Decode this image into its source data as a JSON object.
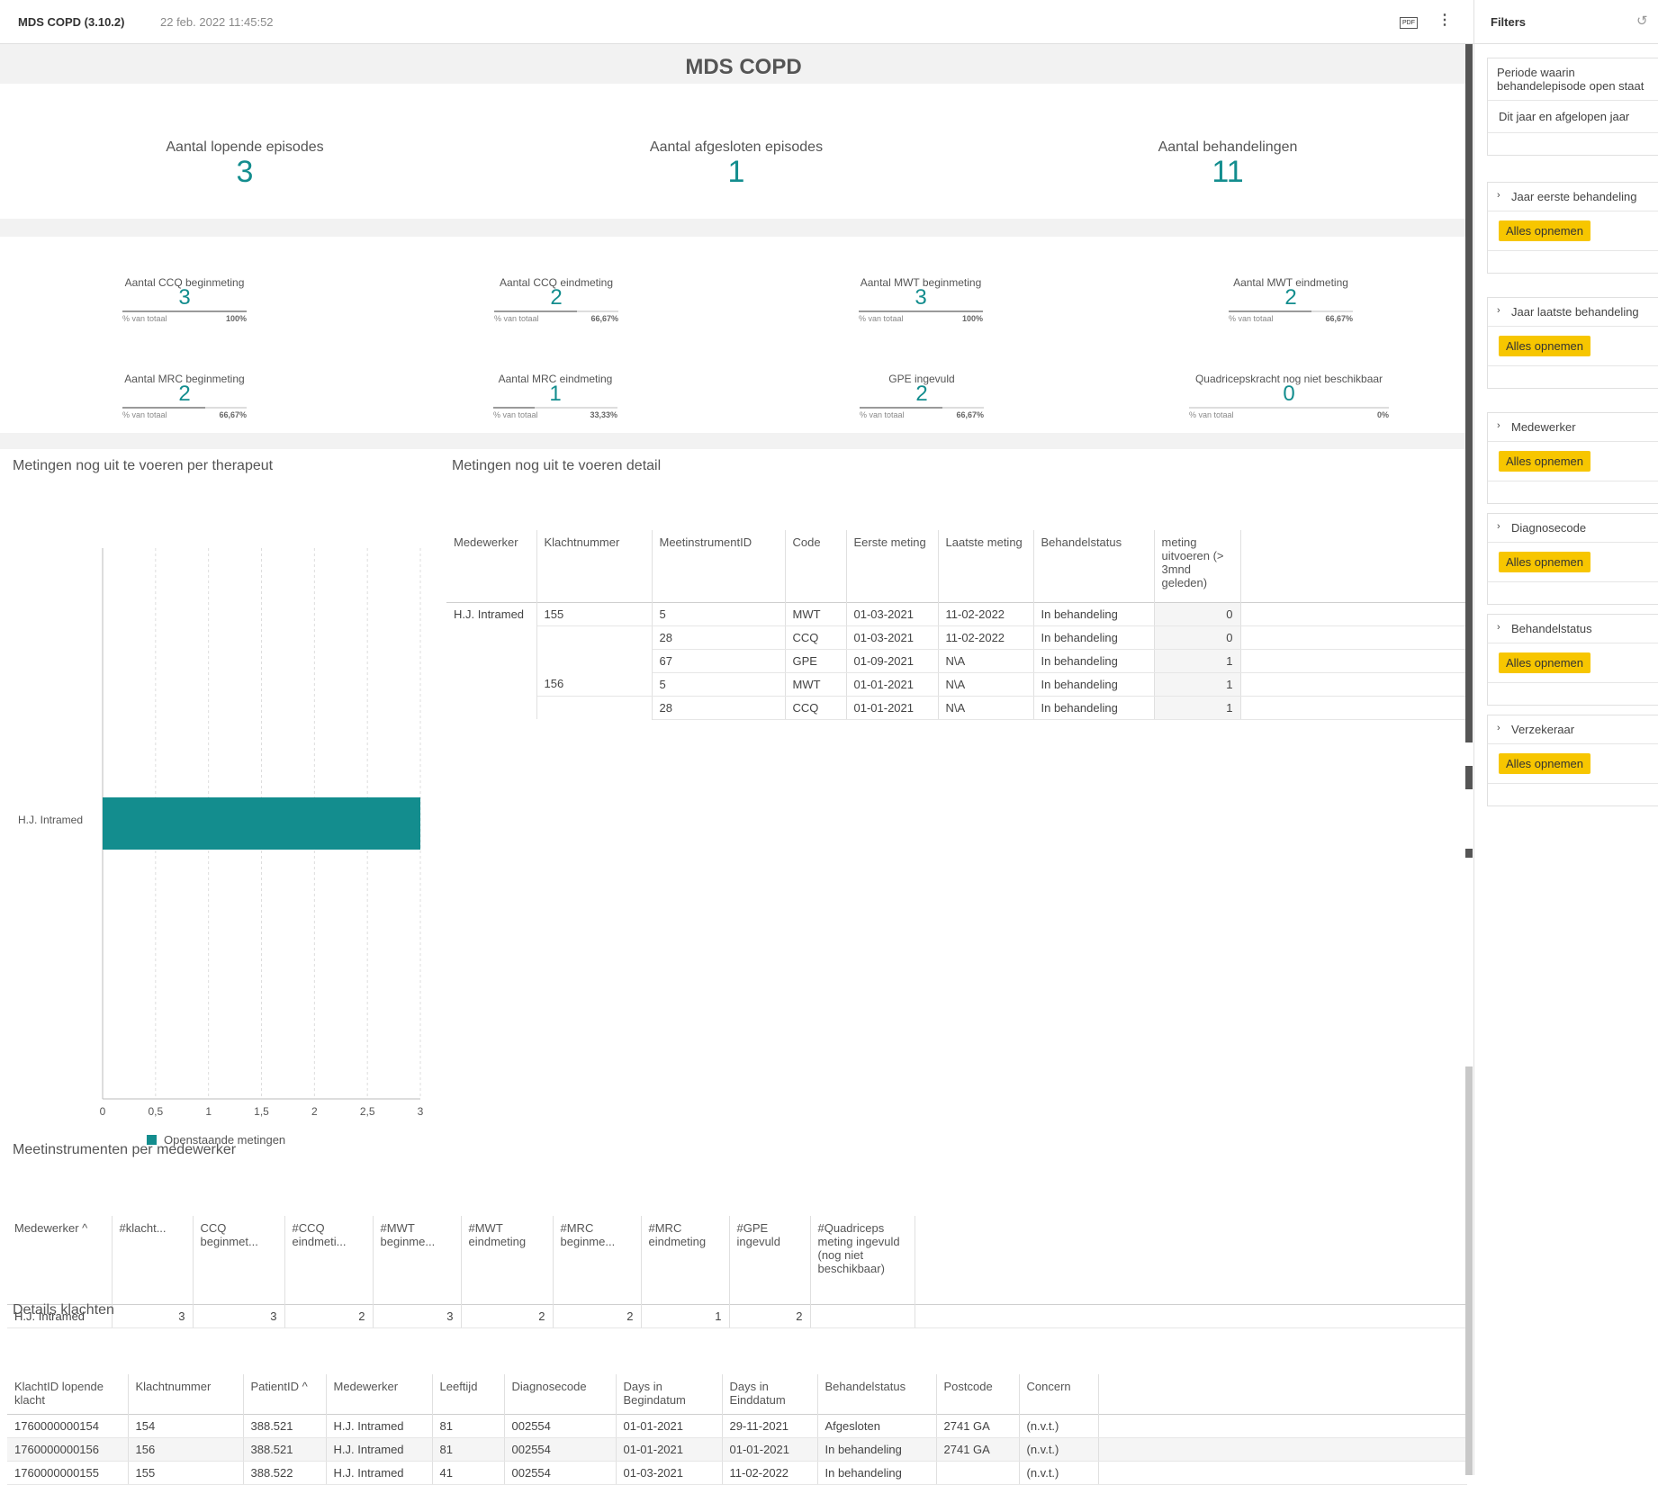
{
  "header": {
    "title": "MDS COPD (3.10.2)",
    "date": "22 feb. 2022 11:45:52",
    "pdf_label": "PDF",
    "more_glyph": "⋮"
  },
  "dashboard": {
    "title": "MDS COPD"
  },
  "kpis": [
    {
      "label": "Aantal lopende episodes",
      "value": "3"
    },
    {
      "label": "Aantal afgesloten episodes",
      "value": "1"
    },
    {
      "label": "Aantal behandelingen",
      "value": "11"
    }
  ],
  "small_kpis": [
    {
      "label": "Aantal CCQ beginmeting",
      "value": "3",
      "pct_label": "% van totaal",
      "pct": "100%",
      "fraction": 1.0
    },
    {
      "label": "Aantal CCQ eindmeting",
      "value": "2",
      "pct_label": "% van totaal",
      "pct": "66,67%",
      "fraction": 0.6667
    },
    {
      "label": "Aantal MWT beginmeting",
      "value": "3",
      "pct_label": "% van totaal",
      "pct": "100%",
      "fraction": 1.0
    },
    {
      "label": "Aantal MWT eindmeting",
      "value": "2",
      "pct_label": "% van totaal",
      "pct": "66,67%",
      "fraction": 0.6667
    },
    {
      "label": "Aantal MRC beginmeting",
      "value": "2",
      "pct_label": "% van totaal",
      "pct": "66,67%",
      "fraction": 0.6667
    },
    {
      "label": "Aantal MRC eindmeting",
      "value": "1",
      "pct_label": "% van totaal",
      "pct": "33,33%",
      "fraction": 0.3333
    },
    {
      "label": "GPE ingevuld",
      "value": "2",
      "pct_label": "% van totaal",
      "pct": "66,67%",
      "fraction": 0.6667
    },
    {
      "label": "Quadricepskracht nog niet beschikbaar",
      "value": "0",
      "pct_label": "% van totaal",
      "pct": "0%",
      "fraction": 0
    }
  ],
  "chart_section": {
    "title": "Metingen nog uit te voeren per therapeut"
  },
  "chart_data": {
    "type": "bar",
    "orientation": "horizontal",
    "categories": [
      "H.J. Intramed"
    ],
    "series": [
      {
        "name": "Openstaande metingen",
        "values": [
          3
        ],
        "color": "#138d8e"
      }
    ],
    "xlim": [
      0,
      3
    ],
    "x_ticks": [
      "0",
      "0,5",
      "1",
      "1,5",
      "2",
      "2,5",
      "3"
    ],
    "grid": true,
    "legend": "bottom"
  },
  "detail_section": {
    "title": "Metingen nog uit te voeren detail",
    "columns": [
      "Medewerker",
      "Klachtnummer",
      "MeetinstrumentID",
      "Code",
      "Eerste meting",
      "Laatste meting",
      "Behandelstatus",
      "meting uitvoeren (> 3mnd geleden)"
    ],
    "rows": [
      [
        "H.J. Intramed",
        "155",
        "5",
        "MWT",
        "01-03-2021",
        "11-02-2022",
        "In behandeling",
        "0"
      ],
      [
        "",
        "",
        "28",
        "CCQ",
        "01-03-2021",
        "11-02-2022",
        "In behandeling",
        "0"
      ],
      [
        "",
        "",
        "67",
        "GPE",
        "01-09-2021",
        "N\\A",
        "In behandeling",
        "1"
      ],
      [
        "",
        "156",
        "5",
        "MWT",
        "01-01-2021",
        "N\\A",
        "In behandeling",
        "1"
      ],
      [
        "",
        "",
        "28",
        "CCQ",
        "01-01-2021",
        "N\\A",
        "In behandeling",
        "1"
      ]
    ]
  },
  "meet_section": {
    "title": "Meetinstrumenten per medewerker",
    "columns": [
      "Medewerker",
      "#klacht...",
      "CCQ beginmet...",
      "#CCQ eindmeti...",
      "#MWT beginme...",
      "#MWT eindmeting",
      "#MRC beginme...",
      "#MRC eindmeting",
      "#GPE ingevuld",
      "#Quadriceps meting ingevuld (nog niet beschikbaar)"
    ],
    "sort_glyph": "^",
    "rows": [
      [
        "H.J. Intramed",
        "3",
        "3",
        "2",
        "3",
        "2",
        "2",
        "1",
        "2",
        ""
      ]
    ]
  },
  "klacht_section": {
    "title": "Details klachten",
    "columns": [
      "KlachtID lopende klacht",
      "Klachtnummer",
      "PatientID",
      "Medewerker",
      "Leeftijd",
      "Diagnosecode",
      "Days in Begindatum",
      "Days in Einddatum",
      "Behandelstatus",
      "Postcode",
      "Concern"
    ],
    "sort_glyph": "^",
    "rows": [
      [
        "1760000000154",
        "154",
        "388.521",
        "H.J. Intramed",
        "81",
        "002554",
        "01-01-2021",
        "29-11-2021",
        "Afgesloten",
        "2741 GA",
        "(n.v.t.)"
      ],
      [
        "1760000000156",
        "156",
        "388.521",
        "H.J. Intramed",
        "81",
        "002554",
        "01-01-2021",
        "01-01-2021",
        "In behandeling",
        "2741 GA",
        "(n.v.t.)"
      ],
      [
        "1760000000155",
        "155",
        "388.522",
        "H.J. Intramed",
        "41",
        "002554",
        "01-03-2021",
        "11-02-2022",
        "In behandeling",
        "",
        "(n.v.t.)"
      ]
    ]
  },
  "sidebar": {
    "title": "Filters",
    "reset_glyph": "↺",
    "period": {
      "label": "Periode waarin behandelepisode open staat",
      "value": "Dit jaar en afgelopen jaar"
    },
    "filters": [
      {
        "label": "Jaar eerste behandeling",
        "button": "Alles opnemen"
      },
      {
        "label": "Jaar laatste behandeling",
        "button": "Alles opnemen"
      },
      {
        "label": "Medewerker",
        "button": "Alles opnemen"
      },
      {
        "label": "Diagnosecode",
        "button": "Alles opnemen"
      },
      {
        "label": "Behandelstatus",
        "button": "Alles opnemen"
      },
      {
        "label": "Verzekeraar",
        "button": "Alles opnemen"
      }
    ]
  }
}
